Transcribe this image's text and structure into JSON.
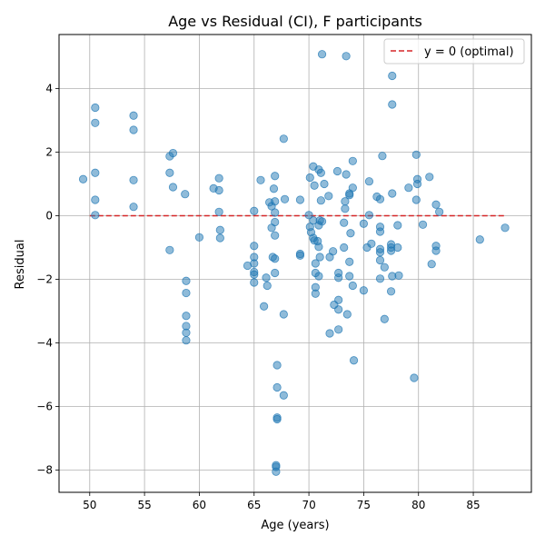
{
  "chart_data": {
    "type": "scatter",
    "title": "Age vs Residual (CI), F participants",
    "xlabel": "Age (years)",
    "ylabel": "Residual",
    "xlim": [
      47.2,
      90.3
    ],
    "ylim": [
      -8.7,
      5.7
    ],
    "xticks": [
      50,
      55,
      60,
      65,
      70,
      75,
      80,
      85
    ],
    "yticks": [
      -8,
      -6,
      -4,
      -2,
      0,
      2,
      4
    ],
    "grid": true,
    "legend": {
      "position": "top-right",
      "entries": [
        "y = 0 (optimal)"
      ]
    },
    "colors": {
      "points": "#1f77b4",
      "reference_line": "#d62728"
    },
    "reference_line": {
      "label": "y = 0 (optimal)",
      "y": 0,
      "x_start": 50,
      "x_end": 88,
      "style": "dashed"
    },
    "points": [
      [
        49.4,
        1.15
      ],
      [
        50.5,
        3.4
      ],
      [
        50.5,
        2.92
      ],
      [
        50.5,
        1.35
      ],
      [
        50.5,
        0.5
      ],
      [
        50.5,
        0.02
      ],
      [
        54.0,
        3.15
      ],
      [
        54.0,
        2.7
      ],
      [
        54.0,
        1.12
      ],
      [
        54.0,
        0.28
      ],
      [
        57.3,
        1.87
      ],
      [
        57.6,
        1.97
      ],
      [
        57.3,
        1.35
      ],
      [
        57.6,
        0.9
      ],
      [
        57.3,
        -1.08
      ],
      [
        58.7,
        0.68
      ],
      [
        58.8,
        -2.05
      ],
      [
        58.8,
        -2.43
      ],
      [
        58.8,
        -3.15
      ],
      [
        58.8,
        -3.47
      ],
      [
        58.8,
        -3.68
      ],
      [
        58.8,
        -3.92
      ],
      [
        60.0,
        -0.68
      ],
      [
        61.3,
        0.86
      ],
      [
        61.8,
        1.18
      ],
      [
        61.8,
        0.8
      ],
      [
        61.8,
        0.12
      ],
      [
        61.9,
        -0.45
      ],
      [
        61.9,
        -0.7
      ],
      [
        64.4,
        -1.57
      ],
      [
        65.0,
        0.15
      ],
      [
        65.0,
        -0.95
      ],
      [
        65.0,
        -1.3
      ],
      [
        65.0,
        -1.5
      ],
      [
        65.0,
        -1.77
      ],
      [
        65.0,
        -1.85
      ],
      [
        65.0,
        -2.1
      ],
      [
        65.6,
        1.12
      ],
      [
        65.9,
        -2.85
      ],
      [
        66.1,
        -1.95
      ],
      [
        66.2,
        -2.2
      ],
      [
        66.4,
        0.42
      ],
      [
        66.6,
        0.3
      ],
      [
        66.6,
        -0.38
      ],
      [
        66.7,
        -1.3
      ],
      [
        66.8,
        0.85
      ],
      [
        66.9,
        1.25
      ],
      [
        66.9,
        0.45
      ],
      [
        66.9,
        0.1
      ],
      [
        66.9,
        -0.2
      ],
      [
        66.9,
        -0.62
      ],
      [
        66.9,
        -1.35
      ],
      [
        66.9,
        -1.8
      ],
      [
        67.0,
        -7.85
      ],
      [
        67.0,
        -7.9
      ],
      [
        67.0,
        -8.05
      ],
      [
        67.1,
        -4.7
      ],
      [
        67.1,
        -5.4
      ],
      [
        67.1,
        -6.35
      ],
      [
        67.1,
        -6.4
      ],
      [
        67.7,
        2.42
      ],
      [
        67.7,
        -3.1
      ],
      [
        67.7,
        -5.65
      ],
      [
        67.8,
        0.52
      ],
      [
        69.2,
        0.5
      ],
      [
        69.2,
        -1.2
      ],
      [
        69.2,
        -1.25
      ],
      [
        70.0,
        0.02
      ],
      [
        70.1,
        1.2
      ],
      [
        70.1,
        -0.35
      ],
      [
        70.2,
        -0.52
      ],
      [
        70.4,
        1.55
      ],
      [
        70.4,
        -0.15
      ],
      [
        70.4,
        -0.7
      ],
      [
        70.5,
        0.95
      ],
      [
        70.5,
        -0.78
      ],
      [
        70.6,
        -1.5
      ],
      [
        70.6,
        -1.8
      ],
      [
        70.6,
        -2.25
      ],
      [
        70.6,
        -2.45
      ],
      [
        70.8,
        -0.8
      ],
      [
        70.9,
        1.45
      ],
      [
        70.9,
        -0.3
      ],
      [
        70.9,
        -0.98
      ],
      [
        70.9,
        -1.9
      ],
      [
        71.0,
        -1.3
      ],
      [
        71.0,
        -0.15
      ],
      [
        71.1,
        1.35
      ],
      [
        71.1,
        0.48
      ],
      [
        71.2,
        -0.18
      ],
      [
        71.2,
        5.08
      ],
      [
        71.4,
        1.0
      ],
      [
        71.8,
        0.62
      ],
      [
        71.9,
        -1.3
      ],
      [
        71.9,
        -3.7
      ],
      [
        72.2,
        -1.12
      ],
      [
        72.3,
        -2.8
      ],
      [
        72.6,
        1.4
      ],
      [
        72.7,
        -1.8
      ],
      [
        72.7,
        -1.95
      ],
      [
        72.7,
        -2.65
      ],
      [
        72.7,
        -2.95
      ],
      [
        72.7,
        -3.58
      ],
      [
        73.2,
        -0.22
      ],
      [
        73.2,
        -1.0
      ],
      [
        73.3,
        0.22
      ],
      [
        73.3,
        0.45
      ],
      [
        73.4,
        1.3
      ],
      [
        73.4,
        5.02
      ],
      [
        73.5,
        -3.1
      ],
      [
        73.7,
        0.65
      ],
      [
        73.7,
        0.7
      ],
      [
        73.7,
        -1.45
      ],
      [
        73.7,
        -1.9
      ],
      [
        73.8,
        -0.55
      ],
      [
        74.0,
        1.72
      ],
      [
        74.0,
        0.88
      ],
      [
        74.0,
        -2.2
      ],
      [
        74.1,
        -4.55
      ],
      [
        75.0,
        -0.25
      ],
      [
        75.0,
        -2.35
      ],
      [
        75.3,
        -1.0
      ],
      [
        75.5,
        1.08
      ],
      [
        75.5,
        0.02
      ],
      [
        75.7,
        -0.88
      ],
      [
        76.2,
        0.6
      ],
      [
        76.5,
        0.52
      ],
      [
        76.5,
        -0.35
      ],
      [
        76.5,
        -0.5
      ],
      [
        76.5,
        -1.05
      ],
      [
        76.5,
        -1.15
      ],
      [
        76.5,
        -1.4
      ],
      [
        76.5,
        -1.98
      ],
      [
        76.7,
        1.88
      ],
      [
        76.9,
        -1.62
      ],
      [
        76.9,
        -3.25
      ],
      [
        77.5,
        -0.9
      ],
      [
        77.5,
        -1.0
      ],
      [
        77.5,
        -1.1
      ],
      [
        77.5,
        -2.38
      ],
      [
        77.6,
        4.4
      ],
      [
        77.6,
        3.5
      ],
      [
        77.6,
        0.7
      ],
      [
        77.6,
        -1.9
      ],
      [
        78.1,
        -0.3
      ],
      [
        78.1,
        -1.0
      ],
      [
        78.2,
        -1.88
      ],
      [
        79.1,
        0.88
      ],
      [
        79.6,
        -5.1
      ],
      [
        79.8,
        1.92
      ],
      [
        79.8,
        0.5
      ],
      [
        79.9,
        1.15
      ],
      [
        79.9,
        1.0
      ],
      [
        80.4,
        -0.28
      ],
      [
        81.0,
        1.22
      ],
      [
        81.2,
        -1.52
      ],
      [
        81.6,
        0.35
      ],
      [
        81.6,
        -1.1
      ],
      [
        81.6,
        -0.95
      ],
      [
        81.9,
        0.12
      ],
      [
        85.6,
        -0.75
      ],
      [
        87.9,
        -0.38
      ]
    ]
  }
}
